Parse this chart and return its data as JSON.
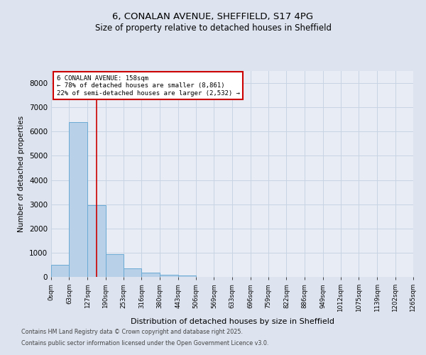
{
  "title1": "6, CONALAN AVENUE, SHEFFIELD, S17 4PG",
  "title2": "Size of property relative to detached houses in Sheffield",
  "xlabel": "Distribution of detached houses by size in Sheffield",
  "ylabel": "Number of detached properties",
  "bin_edges": [
    0,
    63,
    127,
    190,
    253,
    316,
    380,
    443,
    506,
    569,
    633,
    696,
    759,
    822,
    886,
    949,
    1012,
    1075,
    1139,
    1202,
    1265
  ],
  "bar_heights": [
    500,
    6400,
    2950,
    950,
    350,
    175,
    100,
    50,
    0,
    0,
    0,
    0,
    0,
    0,
    0,
    0,
    0,
    0,
    0,
    0
  ],
  "bar_color": "#b8d0e8",
  "bar_edge_color": "#6aaad4",
  "grid_color": "#c8d4e4",
  "red_line_x": 158,
  "annotation_title": "6 CONALAN AVENUE: 158sqm",
  "annotation_line1": "← 78% of detached houses are smaller (8,861)",
  "annotation_line2": "22% of semi-detached houses are larger (2,532) →",
  "annotation_box_color": "#cc0000",
  "ylim": [
    0,
    8500
  ],
  "yticks": [
    0,
    1000,
    2000,
    3000,
    4000,
    5000,
    6000,
    7000,
    8000
  ],
  "footnote1": "Contains HM Land Registry data © Crown copyright and database right 2025.",
  "footnote2": "Contains public sector information licensed under the Open Government Licence v3.0.",
  "bg_color": "#dde4ef",
  "plot_bg_color": "#e8edf5"
}
